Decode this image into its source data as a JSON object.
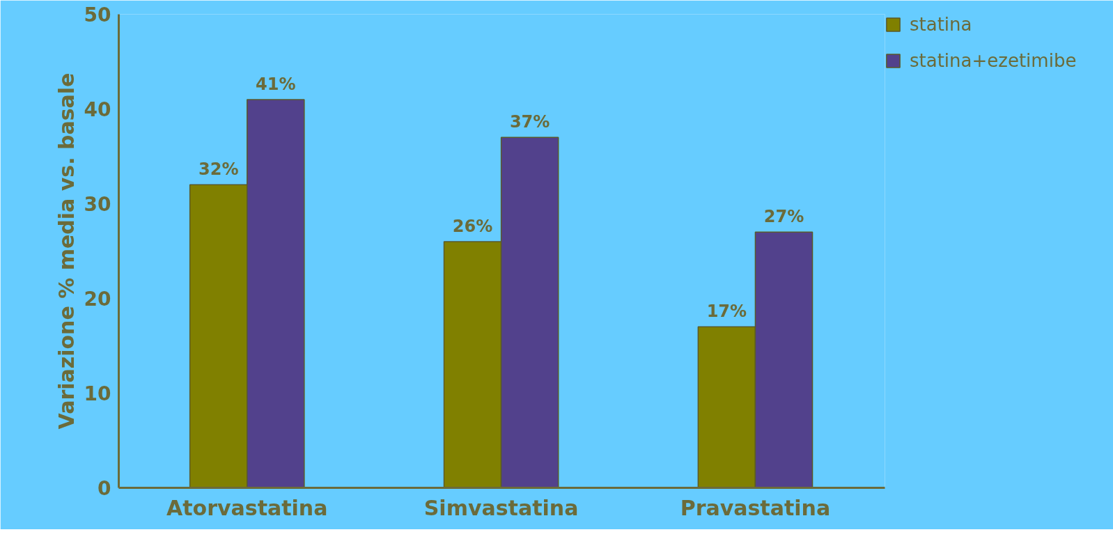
{
  "chart_data": {
    "type": "bar",
    "ylabel": "Variazione % media vs. basale",
    "categories": [
      "Atorvastatina",
      "Simvastatina",
      "Pravastatina"
    ],
    "series": [
      {
        "name": "statina",
        "color": "#808000",
        "values": [
          32,
          26,
          17
        ],
        "value_labels": [
          "32%",
          "26%",
          "17%"
        ]
      },
      {
        "name": "statina+ezetimibe",
        "color": "#52418c",
        "values": [
          41,
          37,
          27
        ],
        "value_labels": [
          "41%",
          "37%",
          "27%"
        ]
      }
    ],
    "ylim": [
      0,
      50
    ],
    "yticks": [
      0,
      10,
      20,
      30,
      40,
      50
    ],
    "grid": false,
    "legend": "top right"
  }
}
